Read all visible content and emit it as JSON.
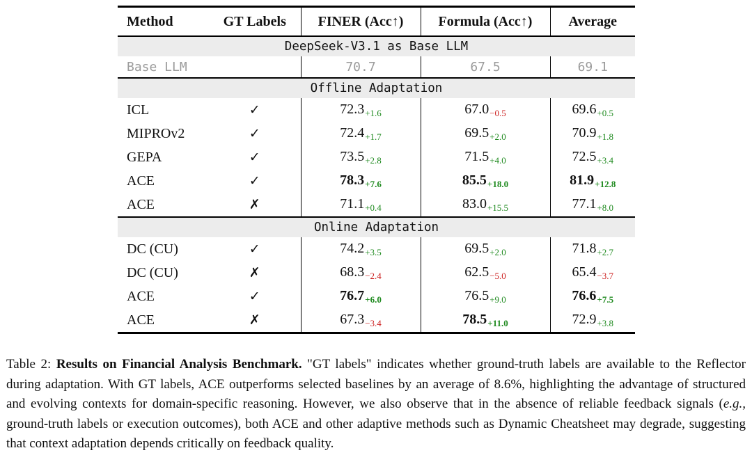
{
  "colors": {
    "positive": "#1f8a1f",
    "negative": "#cc1f1f",
    "section_band_bg": "#ececec",
    "muted_text": "#9b9b9b",
    "rule": "#000000"
  },
  "table": {
    "columns": [
      "Method",
      "GT Labels",
      "FINER (Acc↑)",
      "Formula (Acc↑)",
      "Average"
    ],
    "sections": [
      {
        "title": "DeepSeek-V3.1 as Base LLM",
        "rows": [
          {
            "method": "Base LLM",
            "gt": "",
            "muted": true,
            "cells": [
              {
                "value": "70.7"
              },
              {
                "value": "67.5"
              },
              {
                "value": "69.1"
              }
            ]
          }
        ]
      },
      {
        "title": "Offline Adaptation",
        "rows": [
          {
            "method": "ICL",
            "gt": "✓",
            "cells": [
              {
                "value": "72.3",
                "delta": "+1.6",
                "trend": "up"
              },
              {
                "value": "67.0",
                "delta": "−0.5",
                "trend": "down"
              },
              {
                "value": "69.6",
                "delta": "+0.5",
                "trend": "up"
              }
            ]
          },
          {
            "method": "MIPROv2",
            "gt": "✓",
            "cells": [
              {
                "value": "72.4",
                "delta": "+1.7",
                "trend": "up"
              },
              {
                "value": "69.5",
                "delta": "+2.0",
                "trend": "up"
              },
              {
                "value": "70.9",
                "delta": "+1.8",
                "trend": "up"
              }
            ]
          },
          {
            "method": "GEPA",
            "gt": "✓",
            "cells": [
              {
                "value": "73.5",
                "delta": "+2.8",
                "trend": "up"
              },
              {
                "value": "71.5",
                "delta": "+4.0",
                "trend": "up"
              },
              {
                "value": "72.5",
                "delta": "+3.4",
                "trend": "up"
              }
            ]
          },
          {
            "method": "ACE",
            "gt": "✓",
            "cells": [
              {
                "value": "78.3",
                "delta": "+7.6",
                "trend": "up",
                "bold": true
              },
              {
                "value": "85.5",
                "delta": "+18.0",
                "trend": "up",
                "bold": true
              },
              {
                "value": "81.9",
                "delta": "+12.8",
                "trend": "up",
                "bold": true
              }
            ]
          },
          {
            "method": "ACE",
            "gt": "✗",
            "cells": [
              {
                "value": "71.1",
                "delta": "+0.4",
                "trend": "up"
              },
              {
                "value": "83.0",
                "delta": "+15.5",
                "trend": "up"
              },
              {
                "value": "77.1",
                "delta": "+8.0",
                "trend": "up"
              }
            ]
          }
        ]
      },
      {
        "title": "Online Adaptation",
        "rows": [
          {
            "method": "DC (CU)",
            "gt": "✓",
            "cells": [
              {
                "value": "74.2",
                "delta": "+3.5",
                "trend": "up"
              },
              {
                "value": "69.5",
                "delta": "+2.0",
                "trend": "up"
              },
              {
                "value": "71.8",
                "delta": "+2.7",
                "trend": "up"
              }
            ]
          },
          {
            "method": "DC (CU)",
            "gt": "✗",
            "cells": [
              {
                "value": "68.3",
                "delta": "−2.4",
                "trend": "down"
              },
              {
                "value": "62.5",
                "delta": "−5.0",
                "trend": "down"
              },
              {
                "value": "65.4",
                "delta": "−3.7",
                "trend": "down"
              }
            ]
          },
          {
            "method": "ACE",
            "gt": "✓",
            "cells": [
              {
                "value": "76.7",
                "delta": "+6.0",
                "trend": "up",
                "bold": true
              },
              {
                "value": "76.5",
                "delta": "+9.0",
                "trend": "up"
              },
              {
                "value": "76.6",
                "delta": "+7.5",
                "trend": "up",
                "bold": true
              }
            ]
          },
          {
            "method": "ACE",
            "gt": "✗",
            "cells": [
              {
                "value": "67.3",
                "delta": "−3.4",
                "trend": "down"
              },
              {
                "value": "78.5",
                "delta": "+11.0",
                "trend": "up",
                "bold": true
              },
              {
                "value": "72.9",
                "delta": "+3.8",
                "trend": "up"
              }
            ]
          }
        ]
      }
    ]
  },
  "caption": {
    "label": "Table 2:",
    "title": "Results on Financial Analysis Benchmark.",
    "body_before_italic": "\"GT labels\" indicates whether ground-truth labels are available to the Reflector during adaptation. With GT labels, ACE outperforms selected baselines by an average of 8.6%, highlighting the advantage of structured and evolving contexts for domain-specific reasoning. However, we also observe that in the absence of reliable feedback signals (",
    "italic": "e.g.,",
    "body_after_italic": " ground-truth labels or execution outcomes), both ACE and other adaptive methods such as Dynamic Cheatsheet may degrade, suggesting that context adaptation depends critically on feedback quality."
  }
}
